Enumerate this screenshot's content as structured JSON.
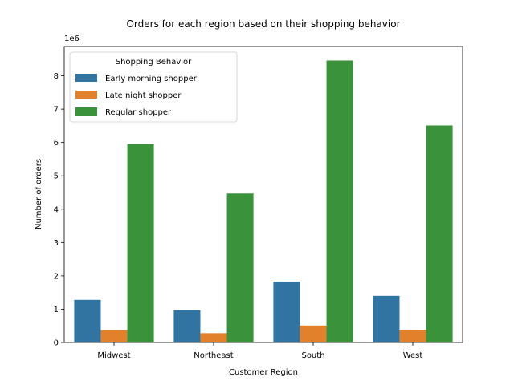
{
  "chart_data": {
    "type": "bar",
    "title": "Orders for each region based on their shopping behavior",
    "xlabel": "Customer Region",
    "ylabel": "Number of orders",
    "y_multiplier_label": "1e6",
    "categories": [
      "Midwest",
      "Northeast",
      "South",
      "West"
    ],
    "series": [
      {
        "name": "Early morning shopper",
        "color": "#3274a1",
        "values": [
          1.28,
          0.97,
          1.83,
          1.4
        ]
      },
      {
        "name": "Late night shopper",
        "color": "#e1812c",
        "values": [
          0.37,
          0.28,
          0.51,
          0.38
        ]
      },
      {
        "name": "Regular shopper",
        "color": "#3a923a",
        "values": [
          5.95,
          4.47,
          8.46,
          6.51
        ]
      }
    ],
    "ylim": [
      0,
      8.88
    ],
    "yticks": [
      0,
      1,
      2,
      3,
      4,
      5,
      6,
      7,
      8
    ],
    "legend": {
      "title": "Shopping Behavior",
      "placement": "top-left"
    },
    "grid": false
  }
}
